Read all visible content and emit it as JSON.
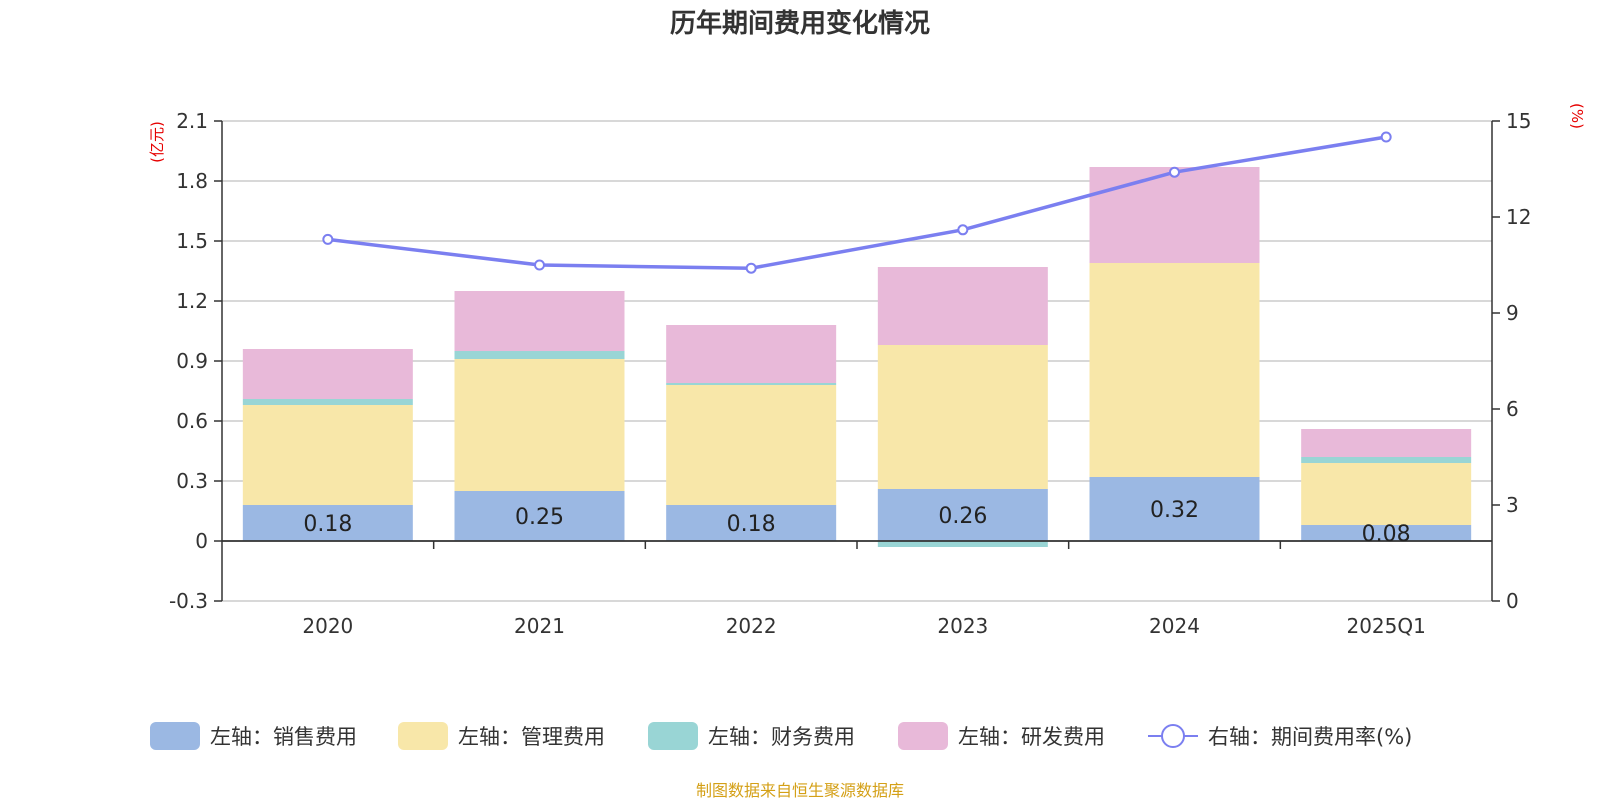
{
  "chart_data": {
    "type": "bar",
    "stacked": true,
    "title": "历年期间费用变化情况",
    "categories": [
      "2020",
      "2021",
      "2022",
      "2023",
      "2024",
      "2025Q1"
    ],
    "left_axis": {
      "unit": "(亿元)",
      "ylim": [
        -0.3,
        2.1
      ],
      "ticks": [
        "2.1",
        "1.8",
        "1.5",
        "1.2",
        "0.9",
        "0.6",
        "0.3",
        "0",
        "-0.3"
      ],
      "tick_values": [
        2.1,
        1.8,
        1.5,
        1.2,
        0.9,
        0.6,
        0.3,
        0,
        -0.3
      ]
    },
    "right_axis": {
      "unit": "(%)",
      "ylim": [
        0,
        15
      ],
      "ticks": [
        "15",
        "12",
        "9",
        "6",
        "3",
        "0"
      ],
      "tick_values": [
        15,
        12,
        9,
        6,
        3,
        0
      ]
    },
    "series": [
      {
        "name": "左轴：销售费用",
        "color": "#9bb8e3",
        "values": [
          0.18,
          0.25,
          0.18,
          0.26,
          0.32,
          0.08
        ],
        "labels": [
          "0.18",
          "0.25",
          "0.18",
          "0.26",
          "0.32",
          "0.08"
        ]
      },
      {
        "name": "左轴：管理费用",
        "color": "#f8e7a9",
        "values": [
          0.5,
          0.66,
          0.6,
          0.72,
          1.07,
          0.31
        ]
      },
      {
        "name": "左轴：财务费用",
        "color": "#99d5d5",
        "values": [
          0.03,
          0.04,
          0.01,
          -0.03,
          0.0,
          0.03
        ]
      },
      {
        "name": "左轴：研发费用",
        "color": "#e8b9d9",
        "values": [
          0.25,
          0.3,
          0.29,
          0.39,
          0.48,
          0.14
        ]
      },
      {
        "name": "右轴：期间费用率(%)",
        "color": "#7b7ff0",
        "axis": "right",
        "type": "line",
        "values": [
          11.3,
          10.5,
          10.4,
          11.6,
          13.4,
          14.5
        ]
      }
    ],
    "legend_position": "bottom",
    "grid": true
  },
  "footer": {
    "source": "制图数据来自恒生聚源数据库"
  }
}
